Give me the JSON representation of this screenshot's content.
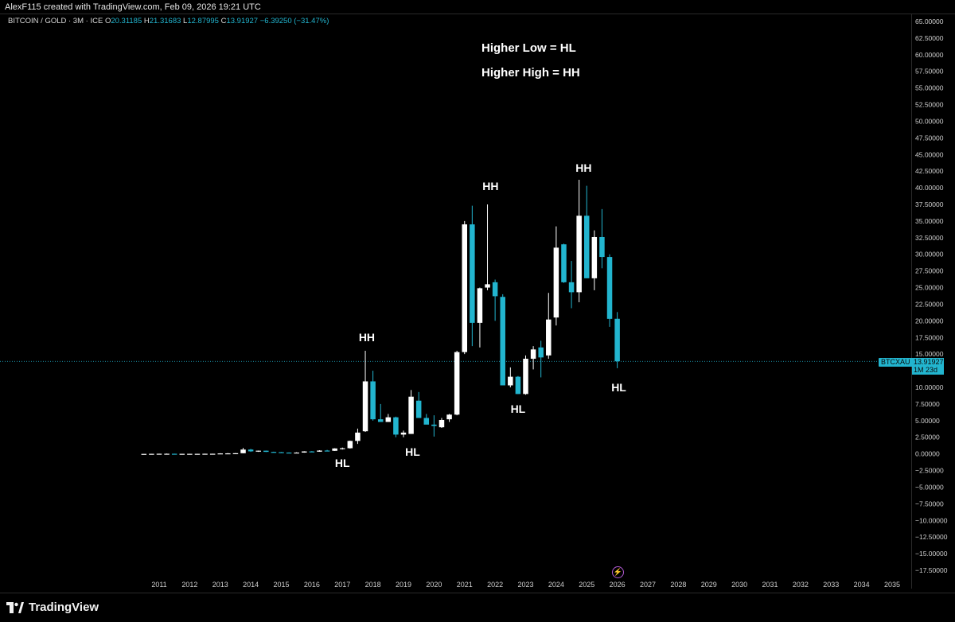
{
  "header": {
    "attribution": "AlexF115 created with TradingView.com, Feb 09, 2026 19:21 UTC"
  },
  "legend": {
    "symbol": "BITCOIN / GOLD · 3M · ICE",
    "open_key": "O",
    "open": "20.31185",
    "high_key": "H",
    "high": "21.31683",
    "low_key": "L",
    "low": "12.87995",
    "close_key": "C",
    "close": "13.91927",
    "change": "−6.39250 (−31.47%)"
  },
  "notes": {
    "line1": "Higher Low = HL",
    "line2": "Higher High = HH"
  },
  "price_tag": {
    "symbol": "BTCXAU",
    "value": "13.91927",
    "countdown": "1M 23d"
  },
  "footer": {
    "brand": "TradingView"
  },
  "colors": {
    "up": "#ffffff",
    "down": "#22b5cf",
    "background": "#000000",
    "accent": "#22b5cf"
  },
  "chart_data": {
    "type": "candlestick",
    "symbol": "BITCOIN / GOLD",
    "interval": "3M",
    "y_ticks": [
      "65.00000",
      "62.50000",
      "60.00000",
      "57.50000",
      "55.00000",
      "52.50000",
      "50.00000",
      "47.50000",
      "45.00000",
      "42.50000",
      "40.00000",
      "37.50000",
      "35.00000",
      "32.50000",
      "30.00000",
      "27.50000",
      "25.00000",
      "22.50000",
      "20.00000",
      "17.50000",
      "15.00000",
      "12.50000",
      "10.00000",
      "7.50000",
      "5.00000",
      "2.50000",
      "0.00000",
      "−2.50000",
      "−5.00000",
      "−7.50000",
      "−10.00000",
      "−12.50000",
      "−15.00000",
      "−17.50000"
    ],
    "x_ticks": [
      "2011",
      "2012",
      "2013",
      "2014",
      "2015",
      "2016",
      "2017",
      "2018",
      "2019",
      "2020",
      "2021",
      "2022",
      "2023",
      "2024",
      "2025",
      "2026",
      "2027",
      "2028",
      "2029",
      "2030",
      "2031",
      "2032",
      "2033",
      "2034",
      "2035"
    ],
    "ylim": [
      -17.5,
      65
    ],
    "last_price": 13.91927,
    "candles": [
      {
        "t": 2010.5,
        "o": 0.0,
        "h": 0.01,
        "l": 0.0,
        "c": 0.0
      },
      {
        "t": 2010.75,
        "o": 0.0,
        "h": 0.02,
        "l": 0.0,
        "c": 0.01
      },
      {
        "t": 2011.0,
        "o": 0.01,
        "h": 0.03,
        "l": 0.0,
        "c": 0.02
      },
      {
        "t": 2011.25,
        "o": 0.02,
        "h": 0.05,
        "l": 0.01,
        "c": 0.02
      },
      {
        "t": 2011.5,
        "o": 0.02,
        "h": 0.03,
        "l": 0.0,
        "c": 0.01
      },
      {
        "t": 2011.75,
        "o": 0.01,
        "h": 0.02,
        "l": 0.0,
        "c": 0.01
      },
      {
        "t": 2012.0,
        "o": 0.01,
        "h": 0.02,
        "l": 0.0,
        "c": 0.01
      },
      {
        "t": 2012.25,
        "o": 0.01,
        "h": 0.02,
        "l": 0.0,
        "c": 0.01
      },
      {
        "t": 2012.5,
        "o": 0.01,
        "h": 0.03,
        "l": 0.0,
        "c": 0.02
      },
      {
        "t": 2012.75,
        "o": 0.02,
        "h": 0.03,
        "l": 0.01,
        "c": 0.02
      },
      {
        "t": 2013.0,
        "o": 0.02,
        "h": 0.1,
        "l": 0.02,
        "c": 0.07
      },
      {
        "t": 2013.25,
        "o": 0.07,
        "h": 0.12,
        "l": 0.05,
        "c": 0.08
      },
      {
        "t": 2013.5,
        "o": 0.08,
        "h": 0.12,
        "l": 0.05,
        "c": 0.1
      },
      {
        "t": 2013.75,
        "o": 0.1,
        "h": 0.9,
        "l": 0.09,
        "c": 0.65
      },
      {
        "t": 2014.0,
        "o": 0.65,
        "h": 0.75,
        "l": 0.3,
        "c": 0.38
      },
      {
        "t": 2014.25,
        "o": 0.38,
        "h": 0.5,
        "l": 0.3,
        "c": 0.48
      },
      {
        "t": 2014.5,
        "o": 0.48,
        "h": 0.5,
        "l": 0.28,
        "c": 0.3
      },
      {
        "t": 2014.75,
        "o": 0.3,
        "h": 0.33,
        "l": 0.18,
        "c": 0.26
      },
      {
        "t": 2015.0,
        "o": 0.26,
        "h": 0.28,
        "l": 0.15,
        "c": 0.2
      },
      {
        "t": 2015.25,
        "o": 0.2,
        "h": 0.22,
        "l": 0.15,
        "c": 0.18
      },
      {
        "t": 2015.5,
        "o": 0.18,
        "h": 0.25,
        "l": 0.16,
        "c": 0.2
      },
      {
        "t": 2015.75,
        "o": 0.2,
        "h": 0.4,
        "l": 0.18,
        "c": 0.37
      },
      {
        "t": 2016.0,
        "o": 0.37,
        "h": 0.42,
        "l": 0.3,
        "c": 0.33
      },
      {
        "t": 2016.25,
        "o": 0.33,
        "h": 0.55,
        "l": 0.32,
        "c": 0.5
      },
      {
        "t": 2016.5,
        "o": 0.5,
        "h": 0.6,
        "l": 0.42,
        "c": 0.46
      },
      {
        "t": 2016.75,
        "o": 0.46,
        "h": 0.85,
        "l": 0.44,
        "c": 0.82
      },
      {
        "t": 2017.0,
        "o": 0.82,
        "h": 0.95,
        "l": 0.65,
        "c": 0.85
      },
      {
        "t": 2017.25,
        "o": 0.85,
        "h": 2.0,
        "l": 0.8,
        "c": 1.95
      },
      {
        "t": 2017.5,
        "o": 1.95,
        "h": 3.8,
        "l": 1.5,
        "c": 3.2
      },
      {
        "t": 2017.75,
        "o": 3.4,
        "h": 15.5,
        "l": 3.3,
        "c": 10.9
      },
      {
        "t": 2018.0,
        "o": 10.9,
        "h": 12.5,
        "l": 5.0,
        "c": 5.2
      },
      {
        "t": 2018.25,
        "o": 5.2,
        "h": 7.5,
        "l": 4.9,
        "c": 4.8
      },
      {
        "t": 2018.5,
        "o": 4.8,
        "h": 6.0,
        "l": 4.9,
        "c": 5.5
      },
      {
        "t": 2018.75,
        "o": 5.5,
        "h": 5.6,
        "l": 2.5,
        "c": 2.9
      },
      {
        "t": 2019.0,
        "o": 2.9,
        "h": 3.5,
        "l": 2.5,
        "c": 3.2
      },
      {
        "t": 2019.25,
        "o": 3.0,
        "h": 9.6,
        "l": 3.0,
        "c": 8.6
      },
      {
        "t": 2019.5,
        "o": 8.0,
        "h": 9.3,
        "l": 5.7,
        "c": 5.4
      },
      {
        "t": 2019.75,
        "o": 5.4,
        "h": 6.0,
        "l": 4.5,
        "c": 4.4
      },
      {
        "t": 2020.0,
        "o": 4.4,
        "h": 5.8,
        "l": 2.6,
        "c": 4.2
      },
      {
        "t": 2020.25,
        "o": 4.0,
        "h": 5.4,
        "l": 3.9,
        "c": 5.1
      },
      {
        "t": 2020.5,
        "o": 5.2,
        "h": 6.0,
        "l": 4.8,
        "c": 5.9
      },
      {
        "t": 2020.75,
        "o": 5.9,
        "h": 15.5,
        "l": 5.8,
        "c": 15.3
      },
      {
        "t": 2021.0,
        "o": 15.3,
        "h": 35.0,
        "l": 15.0,
        "c": 34.5
      },
      {
        "t": 2021.25,
        "o": 34.5,
        "h": 37.3,
        "l": 16.2,
        "c": 19.7
      },
      {
        "t": 2021.5,
        "o": 19.7,
        "h": 25.0,
        "l": 16.0,
        "c": 24.9
      },
      {
        "t": 2021.75,
        "o": 25.0,
        "h": 37.5,
        "l": 24.6,
        "c": 25.5
      },
      {
        "t": 2022.0,
        "o": 25.8,
        "h": 26.2,
        "l": 20.0,
        "c": 23.7
      },
      {
        "t": 2022.25,
        "o": 23.6,
        "h": 24.0,
        "l": 10.3,
        "c": 10.3
      },
      {
        "t": 2022.5,
        "o": 10.3,
        "h": 13.0,
        "l": 10.0,
        "c": 11.6
      },
      {
        "t": 2022.75,
        "o": 11.6,
        "h": 11.7,
        "l": 9.0,
        "c": 9.0
      },
      {
        "t": 2023.0,
        "o": 9.0,
        "h": 14.8,
        "l": 8.9,
        "c": 14.3
      },
      {
        "t": 2023.25,
        "o": 14.3,
        "h": 16.2,
        "l": 12.7,
        "c": 15.7
      },
      {
        "t": 2023.5,
        "o": 16.0,
        "h": 17.0,
        "l": 11.5,
        "c": 14.5
      },
      {
        "t": 2023.75,
        "o": 14.8,
        "h": 24.2,
        "l": 14.3,
        "c": 20.2
      },
      {
        "t": 2024.0,
        "o": 20.5,
        "h": 34.2,
        "l": 19.3,
        "c": 31.0
      },
      {
        "t": 2024.25,
        "o": 31.5,
        "h": 31.6,
        "l": 25.7,
        "c": 25.8
      },
      {
        "t": 2024.5,
        "o": 25.8,
        "h": 29.0,
        "l": 21.9,
        "c": 24.3
      },
      {
        "t": 2024.75,
        "o": 24.3,
        "h": 41.2,
        "l": 22.8,
        "c": 35.8
      },
      {
        "t": 2025.0,
        "o": 35.8,
        "h": 40.3,
        "l": 26.4,
        "c": 26.4
      },
      {
        "t": 2025.25,
        "o": 26.4,
        "h": 33.6,
        "l": 24.6,
        "c": 32.6
      },
      {
        "t": 2025.5,
        "o": 32.6,
        "h": 36.8,
        "l": 27.9,
        "c": 29.6
      },
      {
        "t": 2025.75,
        "o": 29.6,
        "h": 30.0,
        "l": 19.1,
        "c": 20.3
      },
      {
        "t": 2026.0,
        "o": 20.31185,
        "h": 21.31683,
        "l": 12.87995,
        "c": 13.91927
      }
    ],
    "annotations": [
      {
        "text": "HL",
        "t": 2017.0,
        "y": -1.3
      },
      {
        "text": "HH",
        "t": 2017.8,
        "y": 17.5
      },
      {
        "text": "HL",
        "t": 2019.3,
        "y": 0.3
      },
      {
        "text": "HH",
        "t": 2021.85,
        "y": 40.2
      },
      {
        "text": "HL",
        "t": 2022.75,
        "y": 6.8
      },
      {
        "text": "HH",
        "t": 2024.9,
        "y": 43.0
      },
      {
        "text": "HL",
        "t": 2026.05,
        "y": 10.0
      }
    ]
  }
}
